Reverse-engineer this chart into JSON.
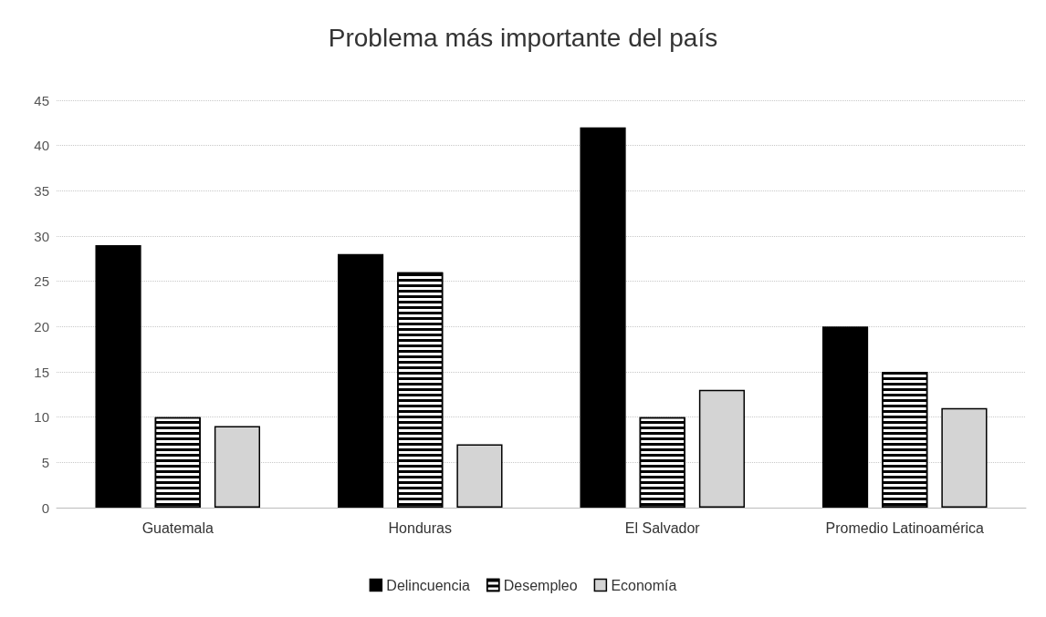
{
  "chart_data": {
    "type": "bar",
    "title": "Problema más importante del país",
    "categories": [
      "Guatemala",
      "Honduras",
      "El Salvador",
      "Promedio Latinoamérica"
    ],
    "series": [
      {
        "name": "Delincuencia",
        "color": "#000000",
        "values": [
          29,
          28,
          42,
          20
        ]
      },
      {
        "name": "Desempleo",
        "color": "#ffffff",
        "values": [
          10,
          26,
          10,
          15
        ]
      },
      {
        "name": "Economía",
        "color": "#d4d4d4",
        "values": [
          9,
          7,
          13,
          11
        ]
      }
    ],
    "ylim": [
      0,
      45
    ],
    "yticks": [
      0,
      5,
      10,
      15,
      20,
      25,
      30,
      35,
      40,
      45
    ],
    "grid": "y",
    "legend": "bottom"
  }
}
